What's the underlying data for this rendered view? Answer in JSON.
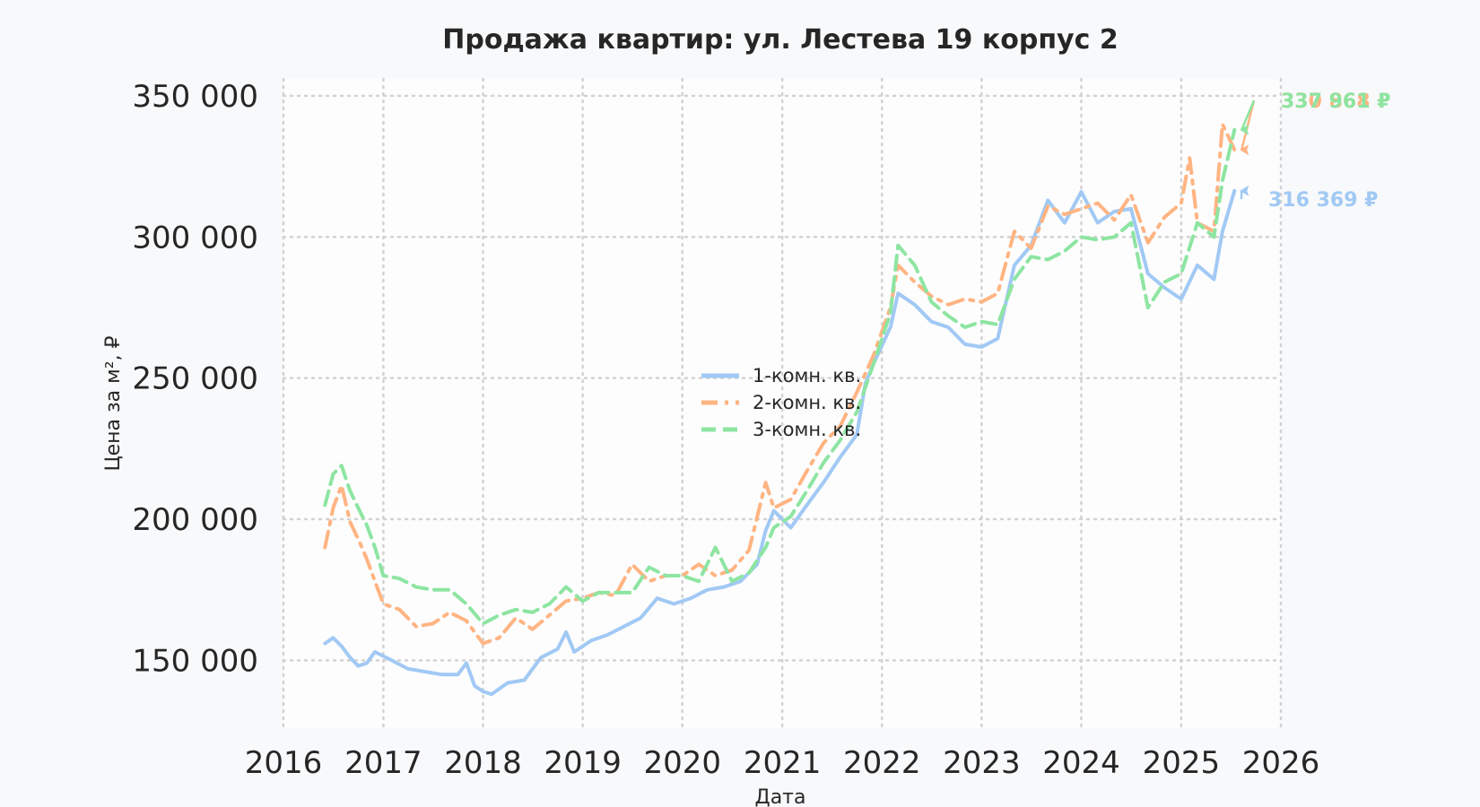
{
  "chart_data": {
    "type": "line",
    "title": "Продажа квартир: ул. Лестева 19 корпус 2",
    "xlabel": "Дата",
    "ylabel": "Цена за м², ₽",
    "xlim": [
      "2016-01-01",
      "2026-01-01"
    ],
    "ylim": [
      126000,
      356000
    ],
    "x_ticks": [
      "2016",
      "2017",
      "2018",
      "2019",
      "2020",
      "2021",
      "2022",
      "2023",
      "2024",
      "2025",
      "2026"
    ],
    "y_ticks": [
      150000,
      200000,
      250000,
      300000,
      350000
    ],
    "y_tick_labels": [
      "150 000",
      "200 000",
      "250 000",
      "300 000",
      "350 000"
    ],
    "grid": true,
    "legend_position": "center",
    "series": [
      {
        "name": "1-комн. кв.",
        "color": "#a1c9f4",
        "dash": "solid",
        "end_label": "316 369 ₽",
        "points": [
          [
            "2016-06-01",
            156000
          ],
          [
            "2016-07-01",
            158000
          ],
          [
            "2016-08-01",
            155000
          ],
          [
            "2016-09-01",
            151000
          ],
          [
            "2016-10-01",
            148000
          ],
          [
            "2016-11-01",
            149000
          ],
          [
            "2016-12-01",
            153000
          ],
          [
            "2017-02-01",
            150000
          ],
          [
            "2017-04-01",
            147000
          ],
          [
            "2017-06-01",
            146000
          ],
          [
            "2017-08-01",
            145000
          ],
          [
            "2017-10-01",
            145000
          ],
          [
            "2017-11-01",
            149000
          ],
          [
            "2017-12-01",
            141000
          ],
          [
            "2018-01-01",
            139000
          ],
          [
            "2018-02-01",
            138000
          ],
          [
            "2018-04-01",
            142000
          ],
          [
            "2018-06-01",
            143000
          ],
          [
            "2018-08-01",
            151000
          ],
          [
            "2018-10-01",
            154000
          ],
          [
            "2018-11-01",
            160000
          ],
          [
            "2018-12-01",
            153000
          ],
          [
            "2019-02-01",
            157000
          ],
          [
            "2019-04-01",
            159000
          ],
          [
            "2019-06-01",
            162000
          ],
          [
            "2019-08-01",
            165000
          ],
          [
            "2019-10-01",
            172000
          ],
          [
            "2019-12-01",
            170000
          ],
          [
            "2020-02-01",
            172000
          ],
          [
            "2020-04-01",
            175000
          ],
          [
            "2020-06-01",
            176000
          ],
          [
            "2020-08-01",
            178000
          ],
          [
            "2020-10-01",
            184000
          ],
          [
            "2020-11-01",
            196000
          ],
          [
            "2020-12-01",
            203000
          ],
          [
            "2021-02-01",
            197000
          ],
          [
            "2021-04-01",
            205000
          ],
          [
            "2021-06-01",
            213000
          ],
          [
            "2021-08-01",
            222000
          ],
          [
            "2021-10-01",
            230000
          ],
          [
            "2021-11-01",
            248000
          ],
          [
            "2021-12-01",
            255000
          ],
          [
            "2022-02-01",
            268000
          ],
          [
            "2022-03-01",
            280000
          ],
          [
            "2022-05-01",
            276000
          ],
          [
            "2022-07-01",
            270000
          ],
          [
            "2022-09-01",
            268000
          ],
          [
            "2022-11-01",
            262000
          ],
          [
            "2023-01-01",
            261000
          ],
          [
            "2023-03-01",
            264000
          ],
          [
            "2023-05-01",
            290000
          ],
          [
            "2023-07-01",
            297000
          ],
          [
            "2023-09-01",
            313000
          ],
          [
            "2023-11-01",
            305000
          ],
          [
            "2024-01-01",
            316000
          ],
          [
            "2024-03-01",
            305000
          ],
          [
            "2024-05-01",
            309000
          ],
          [
            "2024-07-01",
            310000
          ],
          [
            "2024-09-01",
            287000
          ],
          [
            "2024-11-01",
            282000
          ],
          [
            "2025-01-01",
            278000
          ],
          [
            "2025-03-01",
            290000
          ],
          [
            "2025-05-01",
            285000
          ],
          [
            "2025-06-01",
            302000
          ],
          [
            "2025-07-15",
            316369
          ]
        ]
      },
      {
        "name": "2-комн. кв.",
        "color": "#ffb482",
        "dash": "dashdot",
        "end_label": "330 868 ₽",
        "points": [
          [
            "2016-06-01",
            190000
          ],
          [
            "2016-07-01",
            204000
          ],
          [
            "2016-08-01",
            212000
          ],
          [
            "2016-09-01",
            199000
          ],
          [
            "2016-10-01",
            193000
          ],
          [
            "2016-11-01",
            186000
          ],
          [
            "2016-12-01",
            178000
          ],
          [
            "2017-01-01",
            170000
          ],
          [
            "2017-03-01",
            168000
          ],
          [
            "2017-05-01",
            162000
          ],
          [
            "2017-07-01",
            163000
          ],
          [
            "2017-09-01",
            167000
          ],
          [
            "2017-11-01",
            164000
          ],
          [
            "2017-12-01",
            160000
          ],
          [
            "2018-01-01",
            156000
          ],
          [
            "2018-03-01",
            158000
          ],
          [
            "2018-05-01",
            165000
          ],
          [
            "2018-07-01",
            161000
          ],
          [
            "2018-09-01",
            166000
          ],
          [
            "2018-11-01",
            171000
          ],
          [
            "2019-01-01",
            172000
          ],
          [
            "2019-03-01",
            174000
          ],
          [
            "2019-05-01",
            173000
          ],
          [
            "2019-07-01",
            184000
          ],
          [
            "2019-09-01",
            178000
          ],
          [
            "2019-11-01",
            180000
          ],
          [
            "2020-01-01",
            180000
          ],
          [
            "2020-03-01",
            184000
          ],
          [
            "2020-05-01",
            180000
          ],
          [
            "2020-07-01",
            182000
          ],
          [
            "2020-09-01",
            189000
          ],
          [
            "2020-11-01",
            213000
          ],
          [
            "2020-12-01",
            204000
          ],
          [
            "2021-02-01",
            207000
          ],
          [
            "2021-04-01",
            217000
          ],
          [
            "2021-06-01",
            227000
          ],
          [
            "2021-08-01",
            233000
          ],
          [
            "2021-10-01",
            245000
          ],
          [
            "2021-12-01",
            258000
          ],
          [
            "2022-02-01",
            275000
          ],
          [
            "2022-03-01",
            290000
          ],
          [
            "2022-05-01",
            284000
          ],
          [
            "2022-07-01",
            279000
          ],
          [
            "2022-09-01",
            276000
          ],
          [
            "2022-11-01",
            278000
          ],
          [
            "2023-01-01",
            277000
          ],
          [
            "2023-03-01",
            280000
          ],
          [
            "2023-05-01",
            302000
          ],
          [
            "2023-07-01",
            296000
          ],
          [
            "2023-09-01",
            311000
          ],
          [
            "2023-11-01",
            308000
          ],
          [
            "2024-01-01",
            310000
          ],
          [
            "2024-03-01",
            312000
          ],
          [
            "2024-05-01",
            306000
          ],
          [
            "2024-07-01",
            315000
          ],
          [
            "2024-09-01",
            298000
          ],
          [
            "2024-11-01",
            307000
          ],
          [
            "2025-01-01",
            312000
          ],
          [
            "2025-02-01",
            328000
          ],
          [
            "2025-03-01",
            305000
          ],
          [
            "2025-05-01",
            302000
          ],
          [
            "2025-06-01",
            340000
          ],
          [
            "2025-07-15",
            330868
          ]
        ]
      },
      {
        "name": "3-комн. кв.",
        "color": "#8de5a1",
        "dash": "dashed",
        "end_label": "337 961 ₽",
        "points": [
          [
            "2016-06-01",
            205000
          ],
          [
            "2016-07-01",
            216000
          ],
          [
            "2016-08-01",
            219000
          ],
          [
            "2016-09-01",
            210000
          ],
          [
            "2016-10-01",
            204000
          ],
          [
            "2016-11-01",
            198000
          ],
          [
            "2016-12-01",
            190000
          ],
          [
            "2017-01-01",
            180000
          ],
          [
            "2017-03-01",
            179000
          ],
          [
            "2017-05-01",
            176000
          ],
          [
            "2017-07-01",
            175000
          ],
          [
            "2017-09-01",
            175000
          ],
          [
            "2017-11-01",
            170000
          ],
          [
            "2018-01-01",
            163000
          ],
          [
            "2018-03-01",
            166000
          ],
          [
            "2018-05-01",
            168000
          ],
          [
            "2018-07-01",
            167000
          ],
          [
            "2018-09-01",
            170000
          ],
          [
            "2018-11-01",
            176000
          ],
          [
            "2019-01-01",
            171000
          ],
          [
            "2019-03-01",
            174000
          ],
          [
            "2019-05-01",
            174000
          ],
          [
            "2019-07-01",
            174000
          ],
          [
            "2019-09-01",
            183000
          ],
          [
            "2019-11-01",
            180000
          ],
          [
            "2020-01-01",
            180000
          ],
          [
            "2020-03-01",
            178000
          ],
          [
            "2020-05-01",
            190000
          ],
          [
            "2020-07-01",
            178000
          ],
          [
            "2020-09-01",
            181000
          ],
          [
            "2020-11-01",
            190000
          ],
          [
            "2020-12-01",
            197000
          ],
          [
            "2021-02-01",
            201000
          ],
          [
            "2021-04-01",
            210000
          ],
          [
            "2021-06-01",
            220000
          ],
          [
            "2021-08-01",
            228000
          ],
          [
            "2021-10-01",
            238000
          ],
          [
            "2021-12-01",
            255000
          ],
          [
            "2022-02-01",
            273000
          ],
          [
            "2022-03-01",
            297000
          ],
          [
            "2022-05-01",
            290000
          ],
          [
            "2022-07-01",
            277000
          ],
          [
            "2022-09-01",
            272000
          ],
          [
            "2022-11-01",
            268000
          ],
          [
            "2023-01-01",
            270000
          ],
          [
            "2023-03-01",
            269000
          ],
          [
            "2023-05-01",
            285000
          ],
          [
            "2023-07-01",
            293000
          ],
          [
            "2023-09-01",
            292000
          ],
          [
            "2023-11-01",
            295000
          ],
          [
            "2024-01-01",
            300000
          ],
          [
            "2024-03-01",
            299000
          ],
          [
            "2024-05-01",
            300000
          ],
          [
            "2024-07-01",
            305000
          ],
          [
            "2024-09-01",
            275000
          ],
          [
            "2024-11-01",
            284000
          ],
          [
            "2025-01-01",
            287000
          ],
          [
            "2025-03-01",
            305000
          ],
          [
            "2025-05-01",
            300000
          ],
          [
            "2025-06-01",
            320000
          ],
          [
            "2025-07-15",
            337961
          ]
        ]
      }
    ]
  }
}
